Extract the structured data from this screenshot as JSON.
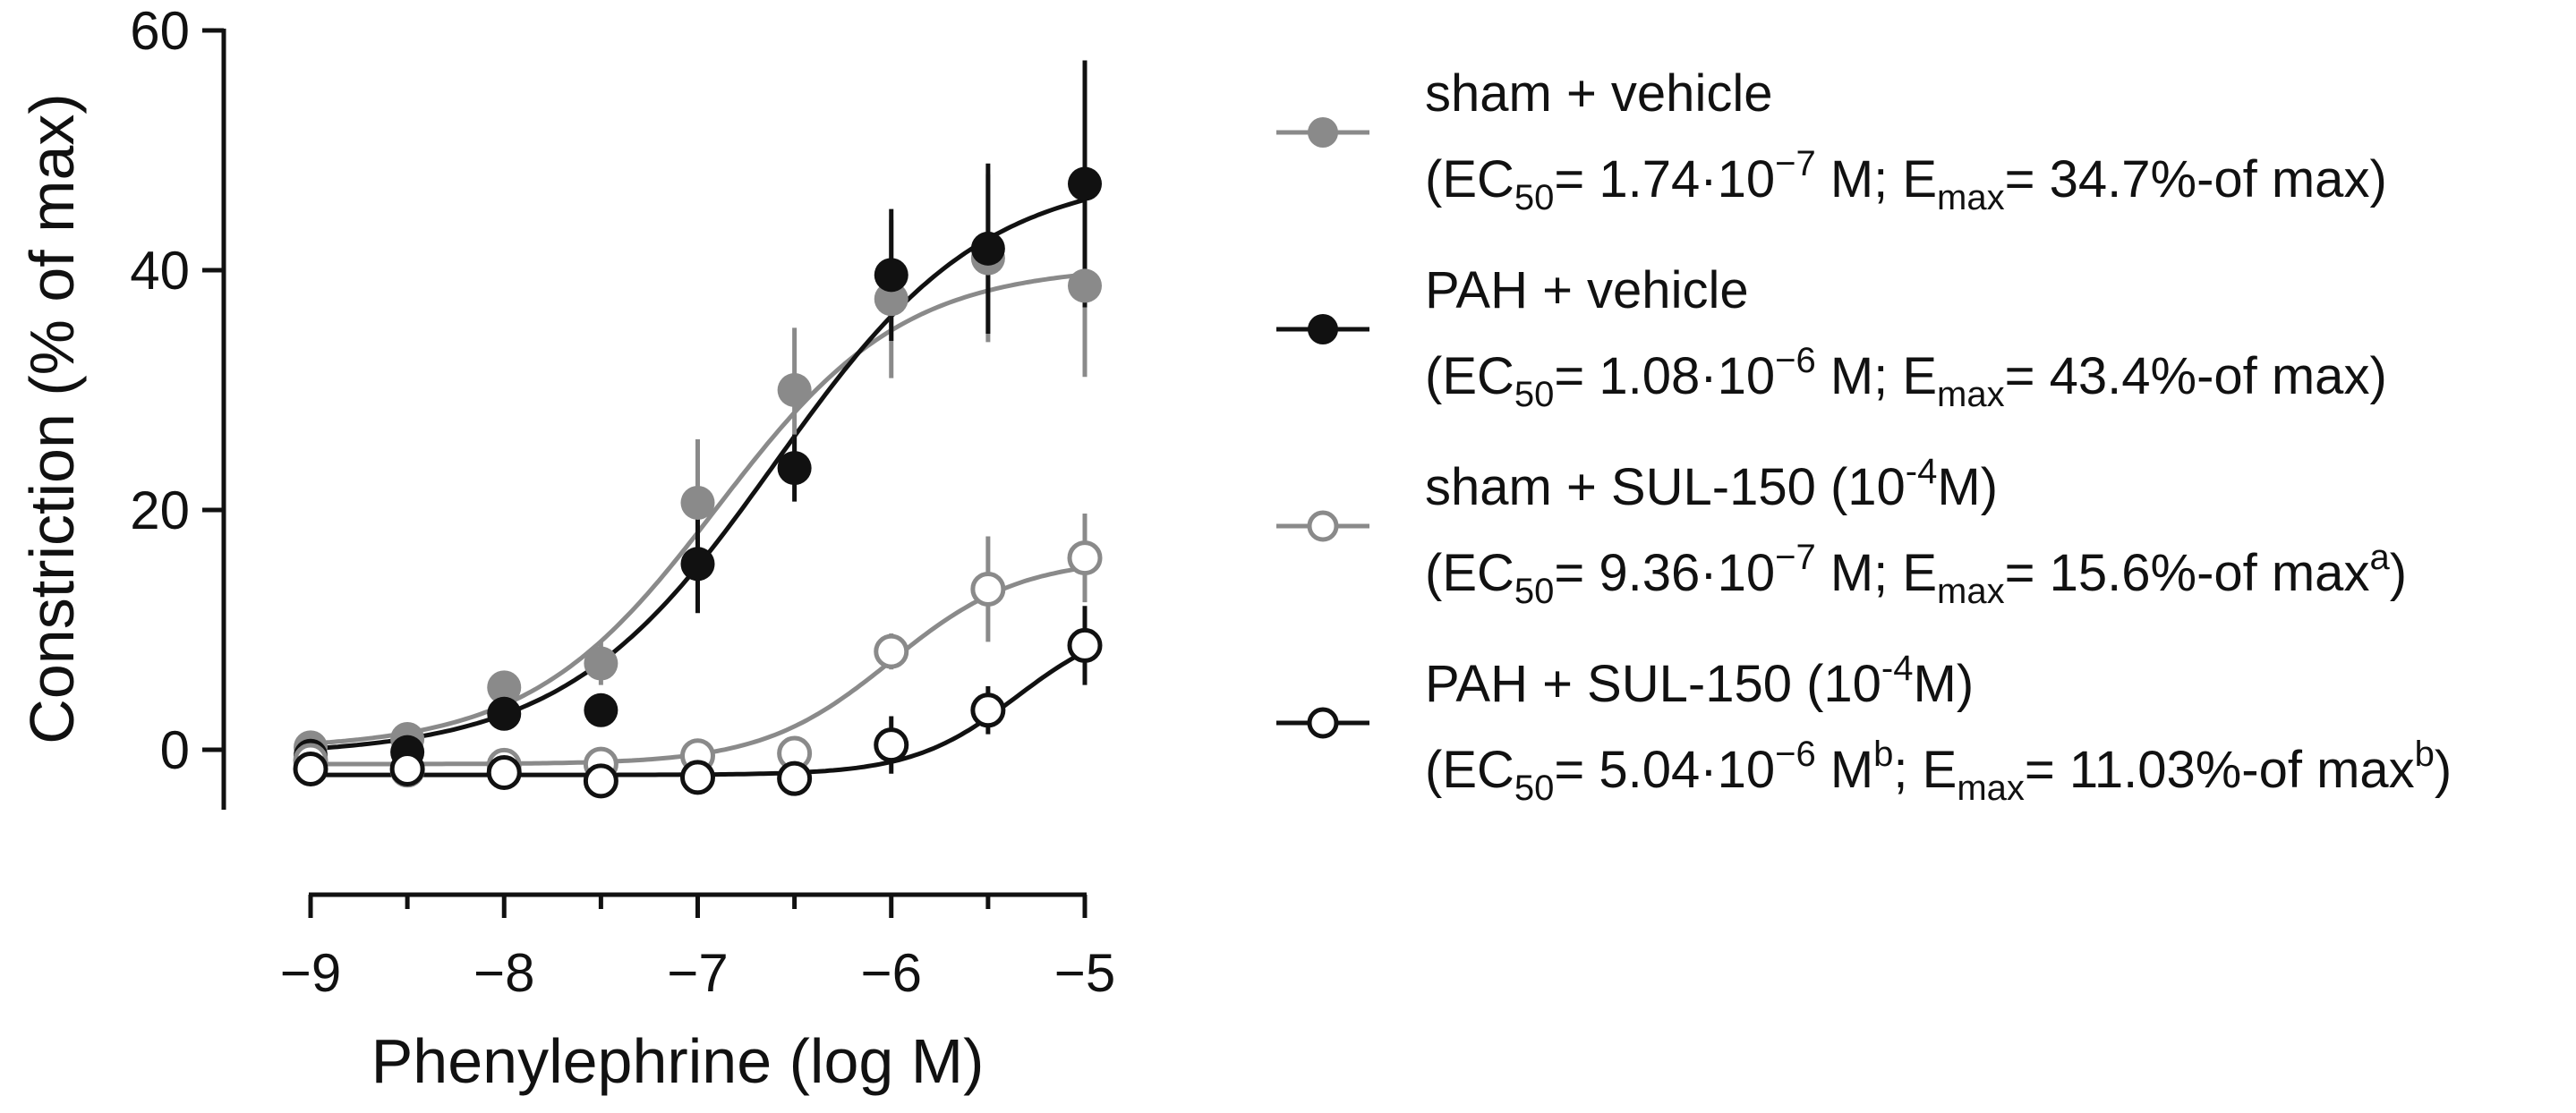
{
  "chart_data": {
    "type": "scatter",
    "title": "",
    "xlabel": "Phenylephrine (log M)",
    "ylabel": "Constriction (% of max)",
    "xlim": [
      -9,
      -5
    ],
    "ylim": [
      -5,
      60
    ],
    "x_ticks": [
      -9,
      -8,
      -7,
      -6,
      -5
    ],
    "x_tick_labels": [
      "−9",
      "−8",
      "−7",
      "−6",
      "−5"
    ],
    "y_ticks": [
      0,
      20,
      40,
      60
    ],
    "y_tick_labels": [
      "0",
      "20",
      "40",
      "60"
    ],
    "grid": false,
    "legend_position": "right",
    "x": [
      -9,
      -8.5,
      -8,
      -7.5,
      -7,
      -6.5,
      -6,
      -5.5,
      -5
    ],
    "series": [
      {
        "name": "sham + vehicle",
        "color": "#8a8a8a",
        "marker": "filled-circle",
        "values": [
          0.2,
          0.9,
          5.2,
          7.2,
          20.6,
          30.0,
          37.6,
          41.0,
          38.7
        ],
        "errors": [
          0.5,
          0.6,
          1.3,
          1.8,
          5.3,
          5.2,
          6.6,
          7.0,
          7.6
        ],
        "fit": {
          "bottom": 0.0,
          "top": 40.4,
          "logEC50": -6.9,
          "hill": 0.9
        },
        "legend_label": "sham + vehicle",
        "legend_stats": {
          "ec50_prefix": "(EC",
          "ec50_sub": "50",
          "ec50_value": "= 1.74·10",
          "ec50_exp": "−7",
          "ec50_unit": " M; E",
          "emax_sub": "max",
          "emax_value": "= 34.7%-of max",
          "emax_sup": "",
          "close": ")"
        }
      },
      {
        "name": "PAH + vehicle",
        "color": "#111111",
        "marker": "filled-circle",
        "values": [
          -0.5,
          -0.2,
          3.0,
          3.3,
          15.5,
          23.5,
          39.6,
          41.8,
          47.2
        ],
        "errors": [
          0.5,
          0.6,
          0.9,
          1.0,
          4.1,
          2.8,
          5.5,
          7.1,
          10.3
        ],
        "fit": {
          "bottom": -0.5,
          "top": 48.3,
          "logEC50": -6.6,
          "hill": 0.8
        },
        "legend_label": "PAH + vehicle",
        "legend_stats": {
          "ec50_prefix": "(EC",
          "ec50_sub": "50",
          "ec50_value": "= 1.08·10",
          "ec50_exp": "−6",
          "ec50_unit": " M; E",
          "emax_sub": "max",
          "emax_value": "= 43.4%-of max",
          "emax_sup": "",
          "close": ")"
        }
      },
      {
        "name": "sham + SUL-150 (10-4M)",
        "color": "#8a8a8a",
        "marker": "open-circle",
        "values": [
          -0.9,
          -1.7,
          -1.3,
          -1.2,
          -0.5,
          -0.3,
          8.2,
          13.4,
          16.0
        ],
        "errors": [
          0.5,
          0.4,
          0.6,
          0.6,
          0.8,
          0.9,
          1.5,
          4.4,
          3.7
        ],
        "fit": {
          "bottom": -1.2,
          "top": 16.0,
          "logEC50": -6.0,
          "hill": 1.3
        },
        "legend_label": "sham + SUL-150 (10",
        "legend_exp": "-4",
        "legend_label_end": "M)",
        "legend_stats": {
          "ec50_prefix": "(EC",
          "ec50_sub": "50",
          "ec50_value": "= 9.36·10",
          "ec50_exp": "−7",
          "ec50_unit": " M; E",
          "emax_sub": "max",
          "emax_value": "= 15.6%-of max",
          "emax_sup": "a",
          "close": ")"
        }
      },
      {
        "name": "PAH + SUL-150 (10-4M)",
        "color": "#111111",
        "marker": "open-circle",
        "values": [
          -1.6,
          -1.6,
          -1.9,
          -2.6,
          -2.3,
          -2.4,
          0.4,
          3.3,
          8.7
        ],
        "errors": [
          0.4,
          0.4,
          0.5,
          0.5,
          0.5,
          0.6,
          2.4,
          2.0,
          3.3
        ],
        "fit": {
          "bottom": -2.1,
          "top": 11.0,
          "logEC50": -5.35,
          "hill": 1.6
        },
        "legend_label": "PAH + SUL-150 (10",
        "legend_exp": "-4",
        "legend_label_end": "M)",
        "legend_stats": {
          "ec50_prefix": "(EC",
          "ec50_sub": "50",
          "ec50_value": "= 5.04·10",
          "ec50_exp": "−6",
          "ec50_unit": " M",
          "ec50_sup": "b",
          "ec50_mid": "; E",
          "emax_sub": "max",
          "emax_value": "= 11.03%-of max",
          "emax_sup": "b",
          "close": ")"
        }
      }
    ]
  }
}
